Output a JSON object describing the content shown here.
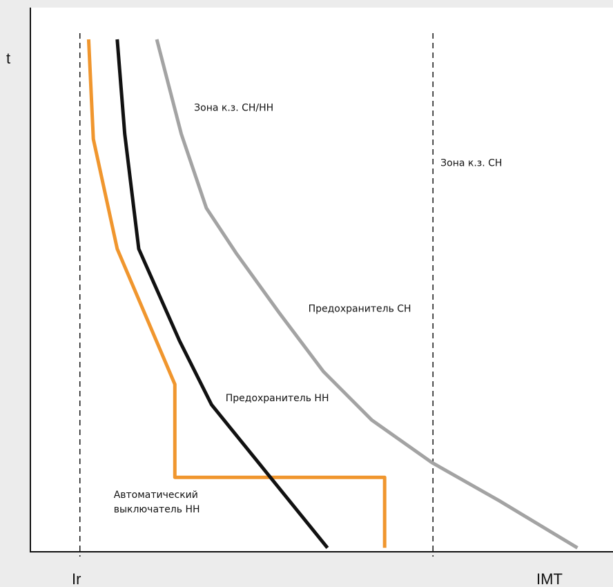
{
  "chart_data": {
    "type": "line",
    "title": "",
    "xlabel": "",
    "ylabel": "t",
    "x_tick_labels": [
      "Ir",
      "IMT"
    ],
    "xlim": [
      0,
      100
    ],
    "ylim": [
      0,
      100
    ],
    "grid": false,
    "legend": "none",
    "colors": {
      "background": "#ececec",
      "plot_area": "#ffffff",
      "orange": "#f0962e",
      "black": "#111111",
      "gray": "#a3a3a3",
      "axis": "#111111"
    },
    "reference_lines": [
      {
        "style": "dashed",
        "x": 8.5
      },
      {
        "style": "dashed",
        "x": 69.1
      }
    ],
    "series": [
      {
        "color": "orange",
        "points": [
          [
            10.0,
            100
          ],
          [
            10.8,
            80.5
          ],
          [
            14.9,
            59.0
          ],
          [
            24.8,
            32.5
          ],
          [
            24.8,
            14.3
          ],
          [
            60.8,
            14.3
          ],
          [
            60.8,
            0.5
          ]
        ]
      },
      {
        "color": "black",
        "points": [
          [
            14.9,
            100
          ],
          [
            16.2,
            81.5
          ],
          [
            18.6,
            59.0
          ],
          [
            25.6,
            41.0
          ],
          [
            31.1,
            28.5
          ],
          [
            51.0,
            0.5
          ]
        ]
      },
      {
        "color": "gray",
        "points": [
          [
            21.7,
            100
          ],
          [
            25.9,
            81.5
          ],
          [
            30.2,
            67.0
          ],
          [
            35.3,
            58.2
          ],
          [
            42.7,
            46.5
          ],
          [
            50.3,
            35.0
          ],
          [
            58.6,
            25.5
          ],
          [
            68.9,
            17.2
          ],
          [
            80.5,
            9.7
          ],
          [
            93.9,
            0.5
          ]
        ]
      }
    ],
    "annotations": [
      {
        "text": "Зона к.з. СН/НН",
        "x": 28.1,
        "y": 86.0
      },
      {
        "text": "Зона к.з. СН",
        "x": 70.4,
        "y": 75.2
      },
      {
        "text": "Предохранитель СН",
        "x": 47.7,
        "y": 46.7
      },
      {
        "text": "Предохранитель НН",
        "x": 33.5,
        "y": 29.2
      },
      {
        "text": "Автоматический выключатель НН",
        "lines": [
          "Автоматический",
          "выключатель НН"
        ],
        "x": 14.3,
        "y": 10.3
      }
    ]
  }
}
